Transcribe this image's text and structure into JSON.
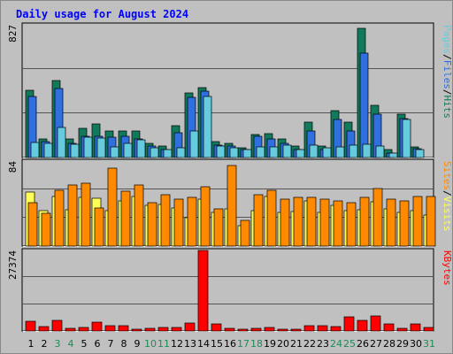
{
  "colors": {
    "frame_bg": "#c0c0c0",
    "title": "#0000ff",
    "weekday_label": "#000000",
    "weekend_label": "#1e8b57",
    "pages": "#66ccdd",
    "files": "#2f6fe0",
    "hits": "#127a5c",
    "sites": "#ff8a00",
    "visits": "#ffff55",
    "kbytes": "#ff0000"
  },
  "chart_data": [
    {
      "type": "bar",
      "title": "Daily usage for August 2024",
      "ylabel_parts": [
        "Pages",
        "/",
        "Files",
        "/",
        "Hits"
      ],
      "ymax_label": "827",
      "ylim": [
        0,
        827
      ],
      "categories": [
        "1",
        "2",
        "3",
        "4",
        "5",
        "6",
        "7",
        "8",
        "9",
        "10",
        "11",
        "12",
        "13",
        "14",
        "15",
        "16",
        "17",
        "18",
        "19",
        "20",
        "21",
        "22",
        "23",
        "24",
        "25",
        "26",
        "27",
        "28",
        "29",
        "30",
        "31"
      ],
      "weekend_days": [
        "3",
        "4",
        "10",
        "11",
        "17",
        "18",
        "24",
        "25",
        "31"
      ],
      "grid": true,
      "series": [
        {
          "name": "Hits",
          "values": [
            417,
            117,
            482,
            114,
            184,
            207,
            163,
            166,
            166,
            86,
            72,
            196,
            400,
            433,
            101,
            90,
            60,
            146,
            148,
            117,
            72,
            221,
            72,
            294,
            222,
            803,
            325,
            50,
            271,
            68,
            0
          ]
        },
        {
          "name": "Files",
          "values": [
            383,
            99,
            428,
            90,
            134,
            134,
            127,
            130,
            114,
            72,
            52,
            152,
            374,
            413,
            77,
            72,
            48,
            130,
            116,
            88,
            52,
            166,
            52,
            236,
            166,
            649,
            271,
            30,
            245,
            55,
            0
          ]
        },
        {
          "name": "Pages",
          "values": [
            95,
            90,
            190,
            81,
            128,
            124,
            68,
            86,
            113,
            60,
            48,
            63,
            168,
            379,
            74,
            58,
            47,
            68,
            65,
            77,
            49,
            77,
            58,
            68,
            76,
            81,
            74,
            26,
            237,
            49,
            0
          ]
        }
      ]
    },
    {
      "type": "bar",
      "ylabel_parts": [
        "Sites",
        "/",
        "Visits"
      ],
      "ymax_label": "84",
      "ylim": [
        0,
        84
      ],
      "categories": [
        "1",
        "2",
        "3",
        "4",
        "5",
        "6",
        "7",
        "8",
        "9",
        "10",
        "11",
        "12",
        "13",
        "14",
        "15",
        "16",
        "17",
        "18",
        "19",
        "20",
        "21",
        "22",
        "23",
        "24",
        "25",
        "26",
        "27",
        "28",
        "29",
        "30",
        "31"
      ],
      "grid": true,
      "series": [
        {
          "name": "Visits",
          "values": [
            53,
            35,
            49,
            36,
            48,
            47,
            35,
            45,
            49,
            40,
            41,
            38,
            28,
            46,
            33,
            37,
            20,
            35,
            49,
            33,
            34,
            45,
            33,
            40,
            35,
            36,
            44,
            37,
            33,
            35,
            31
          ]
        },
        {
          "name": "Sites",
          "values": [
            43,
            32,
            55,
            60,
            62,
            38,
            77,
            54,
            60,
            43,
            51,
            46,
            48,
            59,
            37,
            80,
            25,
            51,
            55,
            46,
            48,
            48,
            46,
            45,
            43,
            48,
            57,
            46,
            45,
            49,
            49
          ]
        }
      ]
    },
    {
      "type": "bar",
      "ylabel": "KBytes",
      "ymax_label": "27374",
      "ylim": [
        0,
        27374
      ],
      "categories": [
        "1",
        "2",
        "3",
        "4",
        "5",
        "6",
        "7",
        "8",
        "9",
        "10",
        "11",
        "12",
        "13",
        "14",
        "15",
        "16",
        "17",
        "18",
        "19",
        "20",
        "21",
        "22",
        "23",
        "24",
        "25",
        "26",
        "27",
        "28",
        "29",
        "30",
        "31"
      ],
      "grid": true,
      "series": [
        {
          "name": "KBytes",
          "values": [
            3400,
            1600,
            3700,
            1000,
            1300,
            2900,
            1800,
            1900,
            700,
            1000,
            1100,
            1200,
            2600,
            27374,
            2400,
            900,
            700,
            1000,
            1100,
            600,
            600,
            1700,
            1800,
            1500,
            4800,
            3700,
            5000,
            2300,
            800,
            2400,
            1200
          ]
        }
      ]
    }
  ]
}
